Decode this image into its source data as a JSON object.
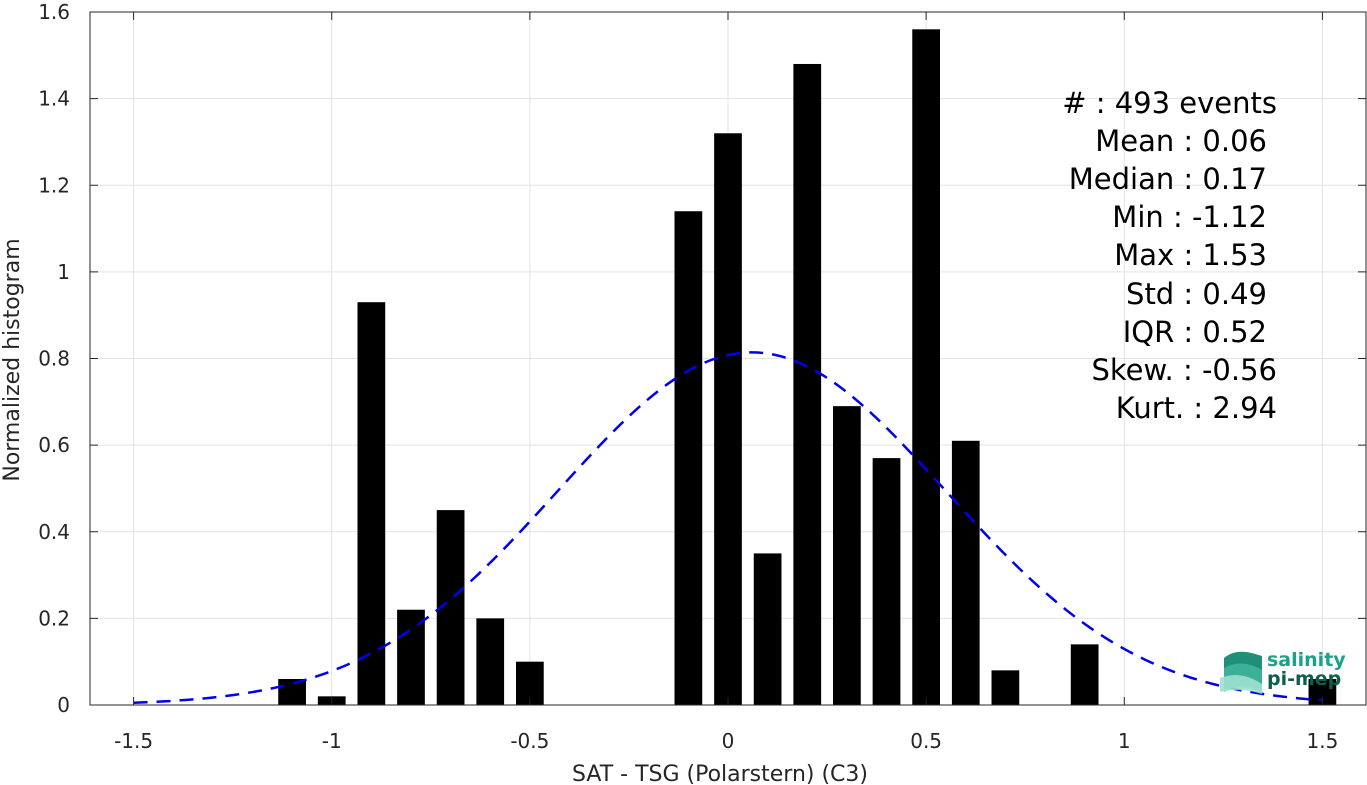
{
  "chart_data": {
    "type": "bar",
    "xlabel": "SAT - TSG (Polarstern) (C3)",
    "ylabel": "Normalized histogram",
    "xlim": [
      -1.61,
      1.61
    ],
    "ylim": [
      0,
      1.6
    ],
    "grid": true,
    "x_ticks": [
      "-1.5",
      "-1",
      "-0.5",
      "0",
      "0.5",
      "1",
      "1.5"
    ],
    "y_ticks": [
      "0",
      "0.2",
      "0.4",
      "0.6",
      "0.8",
      "1",
      "1.2",
      "1.4",
      "1.6"
    ],
    "bar_width": 0.07,
    "bar_color": "#000000",
    "bars": [
      {
        "x": -1.1,
        "value": 0.06
      },
      {
        "x": -1.0,
        "value": 0.02
      },
      {
        "x": -0.9,
        "value": 0.93
      },
      {
        "x": -0.8,
        "value": 0.22
      },
      {
        "x": -0.7,
        "value": 0.45
      },
      {
        "x": -0.6,
        "value": 0.2
      },
      {
        "x": -0.5,
        "value": 0.1
      },
      {
        "x": -0.1,
        "value": 1.14
      },
      {
        "x": 0.0,
        "value": 1.32
      },
      {
        "x": 0.1,
        "value": 0.35
      },
      {
        "x": 0.2,
        "value": 1.48
      },
      {
        "x": 0.3,
        "value": 0.69
      },
      {
        "x": 0.4,
        "value": 0.57
      },
      {
        "x": 0.5,
        "value": 1.56
      },
      {
        "x": 0.6,
        "value": 0.61
      },
      {
        "x": 0.7,
        "value": 0.08
      },
      {
        "x": 0.9,
        "value": 0.14
      },
      {
        "x": 1.5,
        "value": 0.06
      }
    ],
    "fit_curve": {
      "style": "dashed",
      "color": "#0000ee",
      "mean": 0.06,
      "std": 0.49,
      "x_range": [
        -1.5,
        1.5
      ]
    }
  },
  "stats": {
    "events": "#  : 493 events",
    "mean": "Mean : 0.06",
    "median": "Median : 0.17",
    "min": "Min : -1.12",
    "max": "Max : 1.53",
    "std": "Std : 0.49",
    "iqr": "IQR : 0.52",
    "skew": "Skew. : -0.56",
    "kurt": "Kurt. : 2.94"
  },
  "logo": {
    "line1": "salinity",
    "line2": "pi-mep",
    "color": "#1aa38a"
  }
}
